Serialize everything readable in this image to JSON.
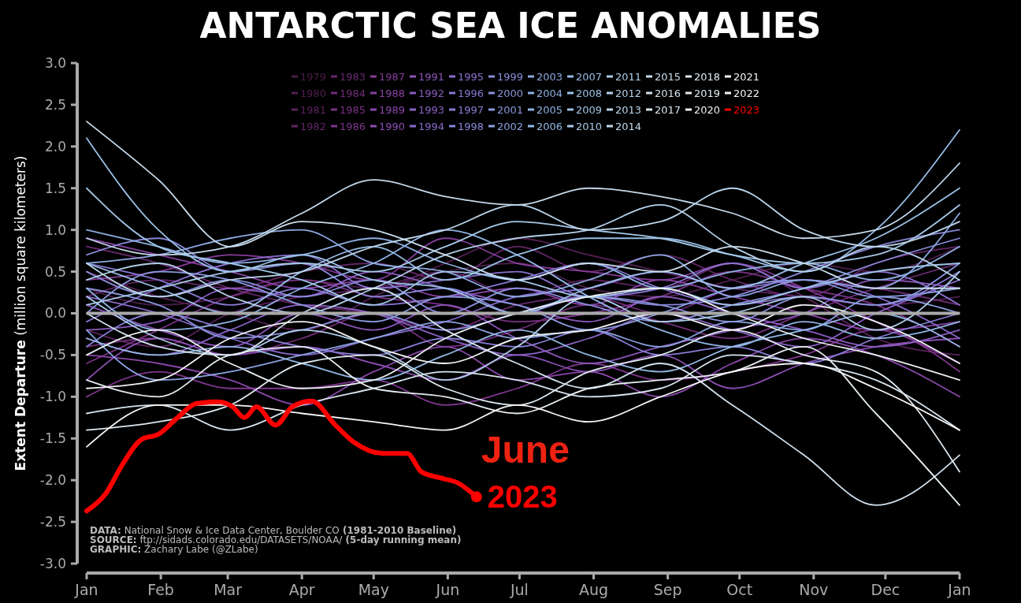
{
  "chart_data": {
    "type": "line",
    "title": "ANTARCTIC SEA ICE ANOMALIES",
    "ylabel": "Extent Departure (million square kilometers)",
    "x": [
      "2023-01-01",
      "2023-01-31",
      "2023-03-02",
      "2023-04-01",
      "2023-05-01",
      "2023-05-31",
      "2023-06-30",
      "2023-07-30",
      "2023-08-29",
      "2023-09-28",
      "2023-10-28",
      "2023-11-27",
      "2024-01-01"
    ],
    "xlim": [
      "2023-01-01",
      "2024-01-01"
    ],
    "xticks": [
      {
        "value": "2023-01-01",
        "label": "Jan"
      },
      {
        "value": "2023-02-01",
        "label": "Feb"
      },
      {
        "value": "2023-03-01",
        "label": "Mar"
      },
      {
        "value": "2023-04-01",
        "label": "Apr"
      },
      {
        "value": "2023-05-01",
        "label": "May"
      },
      {
        "value": "2023-06-01",
        "label": "Jun"
      },
      {
        "value": "2023-07-01",
        "label": "Jul"
      },
      {
        "value": "2023-08-01",
        "label": "Aug"
      },
      {
        "value": "2023-09-01",
        "label": "Sep"
      },
      {
        "value": "2023-10-01",
        "label": "Oct"
      },
      {
        "value": "2023-11-01",
        "label": "Nov"
      },
      {
        "value": "2023-12-01",
        "label": "Dec"
      },
      {
        "value": "2024-01-01",
        "label": "Jan"
      }
    ],
    "ylim": [
      -3,
      3
    ],
    "yticks": [
      {
        "value": -3,
        "label": "-3.0"
      },
      {
        "value": -2.5,
        "label": "-2.5"
      },
      {
        "value": -2,
        "label": "-2.0"
      },
      {
        "value": -1.5,
        "label": "-1.5"
      },
      {
        "value": -1,
        "label": "-1.0"
      },
      {
        "value": -0.5,
        "label": "-0.5"
      },
      {
        "value": 0,
        "label": "0.0"
      },
      {
        "value": 0.5,
        "label": "0.5"
      },
      {
        "value": 1,
        "label": "1.0"
      },
      {
        "value": 1.5,
        "label": "1.5"
      },
      {
        "value": 2,
        "label": "2.0"
      },
      {
        "value": 2.5,
        "label": "2.5"
      },
      {
        "value": 3,
        "label": "3.0"
      }
    ],
    "grid": false,
    "legend": "top",
    "marker": "none",
    "line_style": "solid",
    "ref_lines": [
      {
        "axis": "y",
        "value": 0,
        "color": "#aaaaaa"
      }
    ],
    "annotations": [
      "June",
      "2023",
      "DATA: National Snow & Ice Data Center, Boulder CO (1981-2010 Baseline)",
      "SOURCE: ftp://sidads.colorado.edu/DATASETS/NOAA/ (5-day running mean)",
      "GRAPHIC: Zachary Labe (@ZLabe)"
    ],
    "series": [
      {
        "name": "1979",
        "color": "#4a1e48",
        "values": [
          0.3,
          0.1,
          0.2,
          0.4,
          0.3,
          0.5,
          0.6,
          0.3,
          0.2,
          0.4,
          0.6,
          0.5,
          0.8
        ]
      },
      {
        "name": "1980",
        "color": "#521f52",
        "values": [
          0.5,
          0.2,
          0.0,
          -0.2,
          0.2,
          0.6,
          0.9,
          0.7,
          0.5,
          0.3,
          0.2,
          0.1,
          0.2
        ]
      },
      {
        "name": "1981",
        "color": "#5a225c",
        "values": [
          -0.2,
          -0.4,
          0.0,
          0.2,
          0.3,
          0.5,
          0.2,
          0.4,
          0.3,
          0.6,
          0.2,
          -0.3,
          -0.5
        ]
      },
      {
        "name": "1982",
        "color": "#622566",
        "values": [
          0.2,
          0.4,
          0.3,
          0.5,
          0.6,
          0.4,
          0.8,
          0.5,
          0.7,
          0.4,
          0.2,
          0.6,
          0.8
        ]
      },
      {
        "name": "1983",
        "color": "#6a2970",
        "values": [
          0.8,
          0.6,
          0.3,
          0.1,
          0.0,
          -0.2,
          0.1,
          0.2,
          0.0,
          0.3,
          0.4,
          0.3,
          0.1
        ]
      },
      {
        "name": "1984",
        "color": "#722d7a",
        "values": [
          -0.4,
          -0.3,
          -0.5,
          -0.3,
          0.0,
          -0.4,
          -0.2,
          0.1,
          -0.1,
          -0.3,
          0.0,
          0.3,
          0.6
        ]
      },
      {
        "name": "1985",
        "color": "#7a3184",
        "values": [
          -0.6,
          -0.2,
          0.2,
          0.4,
          0.2,
          0.1,
          -0.1,
          0.0,
          0.2,
          0.5,
          0.3,
          0.1,
          -0.4
        ]
      },
      {
        "name": "1986",
        "color": "#7f368e",
        "values": [
          -1.0,
          -0.7,
          -0.9,
          -0.9,
          -0.8,
          -1.1,
          -0.9,
          -0.6,
          -0.8,
          -0.7,
          -0.5,
          -0.2,
          -0.7
        ]
      },
      {
        "name": "1987",
        "color": "#843b98",
        "values": [
          0.4,
          0.5,
          0.7,
          0.6,
          0.4,
          0.9,
          0.6,
          0.5,
          0.4,
          0.6,
          0.3,
          -0.1,
          -0.6
        ]
      },
      {
        "name": "1988",
        "color": "#8741a2",
        "values": [
          0.9,
          0.7,
          0.5,
          0.3,
          0.4,
          0.2,
          0.3,
          0.1,
          0.4,
          0.2,
          0.0,
          -0.2,
          -0.1
        ]
      },
      {
        "name": "1989",
        "color": "#8a47aa",
        "values": [
          -0.5,
          -0.6,
          -0.8,
          -1.1,
          -0.7,
          -0.4,
          -0.8,
          -0.7,
          -1.0,
          -0.6,
          -0.3,
          -0.5,
          -1.0
        ]
      },
      {
        "name": "1990",
        "color": "#8a4db2",
        "values": [
          -0.8,
          -0.3,
          -0.5,
          -0.4,
          -0.6,
          -0.8,
          -0.5,
          -0.7,
          -0.5,
          -0.9,
          -0.6,
          -0.4,
          -0.3
        ]
      },
      {
        "name": "1991",
        "color": "#8a54b8",
        "values": [
          0.1,
          -0.2,
          -0.4,
          0.0,
          -0.2,
          0.1,
          -0.3,
          -0.6,
          -0.4,
          -0.2,
          0.0,
          0.4,
          0.3
        ]
      },
      {
        "name": "1992",
        "color": "#8a5bbe",
        "values": [
          -0.2,
          -0.1,
          0.3,
          0.2,
          0.5,
          0.3,
          0.1,
          -0.1,
          0.2,
          0.0,
          -0.2,
          -0.4,
          -0.2
        ]
      },
      {
        "name": "1993",
        "color": "#8962c4",
        "values": [
          -0.3,
          -0.5,
          -0.2,
          0.1,
          0.0,
          -0.3,
          -0.5,
          -0.3,
          0.0,
          -0.2,
          -0.4,
          0.0,
          0.4
        ]
      },
      {
        "name": "1994",
        "color": "#8869ca",
        "values": [
          0.2,
          0.0,
          -0.3,
          -0.5,
          -0.3,
          -0.1,
          0.2,
          0.3,
          0.5,
          0.3,
          0.4,
          0.2,
          -0.3
        ]
      },
      {
        "name": "1995",
        "color": "#8870ce",
        "values": [
          -0.1,
          0.3,
          0.6,
          0.7,
          0.3,
          0.4,
          0.5,
          0.2,
          0.3,
          0.6,
          0.3,
          0.5,
          0.1
        ]
      },
      {
        "name": "1996",
        "color": "#8777d2",
        "values": [
          0.6,
          0.4,
          0.1,
          0.3,
          0.1,
          0.2,
          0.4,
          0.6,
          0.3,
          0.1,
          0.2,
          0.1,
          0.5
        ]
      },
      {
        "name": "1997",
        "color": "#877ed6",
        "values": [
          -0.4,
          0.0,
          -0.2,
          -0.4,
          -0.5,
          -0.3,
          -0.4,
          -0.2,
          -0.5,
          -0.4,
          -0.6,
          -0.3,
          0.0
        ]
      },
      {
        "name": "1998",
        "color": "#8885d8",
        "values": [
          0.7,
          0.9,
          0.5,
          0.6,
          0.2,
          0.3,
          0.0,
          0.2,
          0.1,
          0.2,
          0.5,
          0.8,
          1.0
        ]
      },
      {
        "name": "1999",
        "color": "#898cda",
        "values": [
          0.5,
          0.2,
          0.4,
          0.2,
          0.4,
          0.0,
          0.3,
          0.1,
          -0.1,
          0.1,
          0.3,
          0.6,
          0.9
        ]
      },
      {
        "name": "2000",
        "color": "#8a93dc",
        "values": [
          0.3,
          0.1,
          -0.3,
          -0.2,
          0.0,
          -0.2,
          0.0,
          0.2,
          0.1,
          -0.1,
          0.2,
          0.1,
          0.6
        ]
      },
      {
        "name": "2001",
        "color": "#8a9ade",
        "values": [
          0.0,
          0.5,
          0.4,
          0.1,
          -0.1,
          0.2,
          0.1,
          -0.2,
          0.0,
          0.3,
          0.4,
          0.2,
          0.3
        ]
      },
      {
        "name": "2002",
        "color": "#8ba1e0",
        "values": [
          -0.2,
          -0.8,
          -0.7,
          -0.5,
          -0.3,
          -0.1,
          -0.3,
          -0.2,
          -0.4,
          -0.1,
          -0.2,
          0.2,
          0.0
        ]
      },
      {
        "name": "2003",
        "color": "#8ca8e1",
        "values": [
          0.6,
          0.7,
          0.9,
          1.0,
          0.6,
          0.5,
          0.2,
          0.4,
          0.7,
          0.2,
          0.4,
          0.3,
          1.2
        ]
      },
      {
        "name": "2004",
        "color": "#8daee2",
        "values": [
          1.0,
          0.8,
          0.6,
          0.7,
          0.9,
          0.6,
          0.4,
          0.6,
          0.3,
          0.5,
          0.6,
          0.4,
          0.8
        ]
      },
      {
        "name": "2005",
        "color": "#8fb3e3",
        "values": [
          0.3,
          -0.2,
          -0.1,
          0.3,
          0.6,
          1.0,
          0.7,
          0.2,
          -0.2,
          -0.4,
          -0.1,
          -0.3,
          -0.1
        ]
      },
      {
        "name": "2006",
        "color": "#92b8e4",
        "values": [
          -0.3,
          -0.5,
          -0.4,
          -0.6,
          -0.8,
          -0.5,
          -0.2,
          -0.5,
          -0.7,
          -0.4,
          -0.2,
          0.0,
          -0.4
        ]
      },
      {
        "name": "2007",
        "color": "#96bce5",
        "values": [
          0.6,
          0.3,
          0.0,
          0.5,
          0.8,
          0.4,
          0.7,
          0.9,
          0.9,
          0.7,
          0.5,
          1.0,
          2.2
        ]
      },
      {
        "name": "2008",
        "color": "#9bc0e6",
        "values": [
          2.1,
          1.0,
          0.5,
          0.7,
          0.4,
          0.3,
          0.0,
          0.3,
          0.5,
          0.3,
          0.6,
          0.9,
          1.5
        ]
      },
      {
        "name": "2009",
        "color": "#a0c4e6",
        "values": [
          1.5,
          0.8,
          0.6,
          0.4,
          0.1,
          0.5,
          0.4,
          0.2,
          0.3,
          0.1,
          0.3,
          0.5,
          0.6
        ]
      },
      {
        "name": "2010",
        "color": "#a6c8e7",
        "values": [
          0.1,
          0.3,
          0.5,
          0.6,
          0.5,
          0.8,
          1.1,
          1.0,
          0.9,
          0.7,
          0.6,
          0.7,
          1.3
        ]
      },
      {
        "name": "2011",
        "color": "#adcce7",
        "values": [
          0.2,
          -0.3,
          -0.5,
          -0.2,
          -0.4,
          -0.8,
          -0.4,
          0.2,
          -0.1,
          0.0,
          0.2,
          -0.2,
          0.5
        ]
      },
      {
        "name": "2012",
        "color": "#b4d0e8",
        "values": [
          0.4,
          0.6,
          0.2,
          0.0,
          0.3,
          0.7,
          0.9,
          1.0,
          1.3,
          0.8,
          0.5,
          0.8,
          0.4
        ]
      },
      {
        "name": "2013",
        "color": "#bbd4e9",
        "values": [
          0.6,
          0.2,
          0.4,
          0.5,
          0.8,
          1.0,
          1.3,
          1.0,
          1.1,
          1.5,
          1.0,
          0.8,
          1.1
        ]
      },
      {
        "name": "2014",
        "color": "#c2d8ea",
        "values": [
          0.9,
          0.7,
          0.8,
          1.2,
          1.6,
          1.4,
          1.3,
          1.5,
          1.4,
          1.2,
          0.9,
          1.0,
          1.8
        ]
      },
      {
        "name": "2015",
        "color": "#c9dcec",
        "values": [
          2.3,
          1.6,
          0.8,
          1.1,
          1.0,
          0.7,
          0.4,
          0.6,
          0.5,
          0.8,
          0.6,
          0.3,
          0.3
        ]
      },
      {
        "name": "2016",
        "color": "#d0e0ed",
        "values": [
          0.0,
          -0.4,
          -0.5,
          0.0,
          0.3,
          -0.2,
          -0.6,
          -0.9,
          -0.6,
          -1.1,
          -1.7,
          -2.3,
          -1.7
        ]
      },
      {
        "name": "2017",
        "color": "#d7e4ee",
        "values": [
          -1.2,
          -1.1,
          -1.4,
          -1.1,
          -0.9,
          -0.7,
          -0.8,
          -1.0,
          -0.9,
          -0.5,
          -0.6,
          -0.8,
          -1.4
        ]
      },
      {
        "name": "2018",
        "color": "#dee8ef",
        "values": [
          -1.4,
          -1.3,
          -1.1,
          -0.6,
          -0.5,
          -0.9,
          -1.1,
          -0.7,
          -0.5,
          -0.2,
          -0.5,
          -0.7,
          -1.9
        ]
      },
      {
        "name": "2019",
        "color": "#e4ecf0",
        "values": [
          -0.8,
          -1.0,
          -0.5,
          -0.4,
          -0.9,
          -1.0,
          -1.2,
          -0.9,
          -0.8,
          -0.7,
          -0.4,
          -1.2,
          -2.3
        ]
      },
      {
        "name": "2020",
        "color": "#eaeff2",
        "values": [
          -0.5,
          -0.2,
          -0.6,
          -0.9,
          -0.8,
          -0.3,
          0.0,
          0.2,
          0.3,
          0.0,
          -0.3,
          -0.5,
          -0.8
        ]
      },
      {
        "name": "2021",
        "color": "#f0f2f4",
        "values": [
          -0.9,
          -0.8,
          -0.3,
          -0.1,
          -0.4,
          -0.6,
          -0.3,
          -0.2,
          0.0,
          -0.2,
          0.1,
          -0.1,
          -0.6
        ]
      },
      {
        "name": "2022",
        "color": "#f5f5f5",
        "values": [
          -1.6,
          -1.1,
          -1.1,
          -1.2,
          -1.3,
          -1.4,
          -1.1,
          -1.3,
          -1.0,
          -0.7,
          -0.6,
          -0.9,
          -1.4
        ]
      },
      {
        "name": "2023",
        "color": "#ff0000",
        "x": [
          "2023-01-01",
          "2023-01-09",
          "2023-01-16",
          "2023-01-24",
          "2023-01-31",
          "2023-02-08",
          "2023-02-16",
          "2023-02-25",
          "2023-03-03",
          "2023-03-08",
          "2023-03-13",
          "2023-03-21",
          "2023-03-28",
          "2023-04-05",
          "2023-04-15",
          "2023-04-23",
          "2023-05-05",
          "2023-05-15",
          "2023-05-21",
          "2023-05-30",
          "2023-06-05",
          "2023-06-13"
        ],
        "values": [
          -2.37,
          -2.16,
          -1.81,
          -1.51,
          -1.45,
          -1.25,
          -1.08,
          -1.06,
          -1.12,
          -1.25,
          -1.12,
          -1.34,
          -1.12,
          -1.05,
          -1.34,
          -1.55,
          -1.68,
          -1.68,
          -1.9,
          -1.98,
          -2.03,
          -2.2
        ]
      }
    ]
  }
}
